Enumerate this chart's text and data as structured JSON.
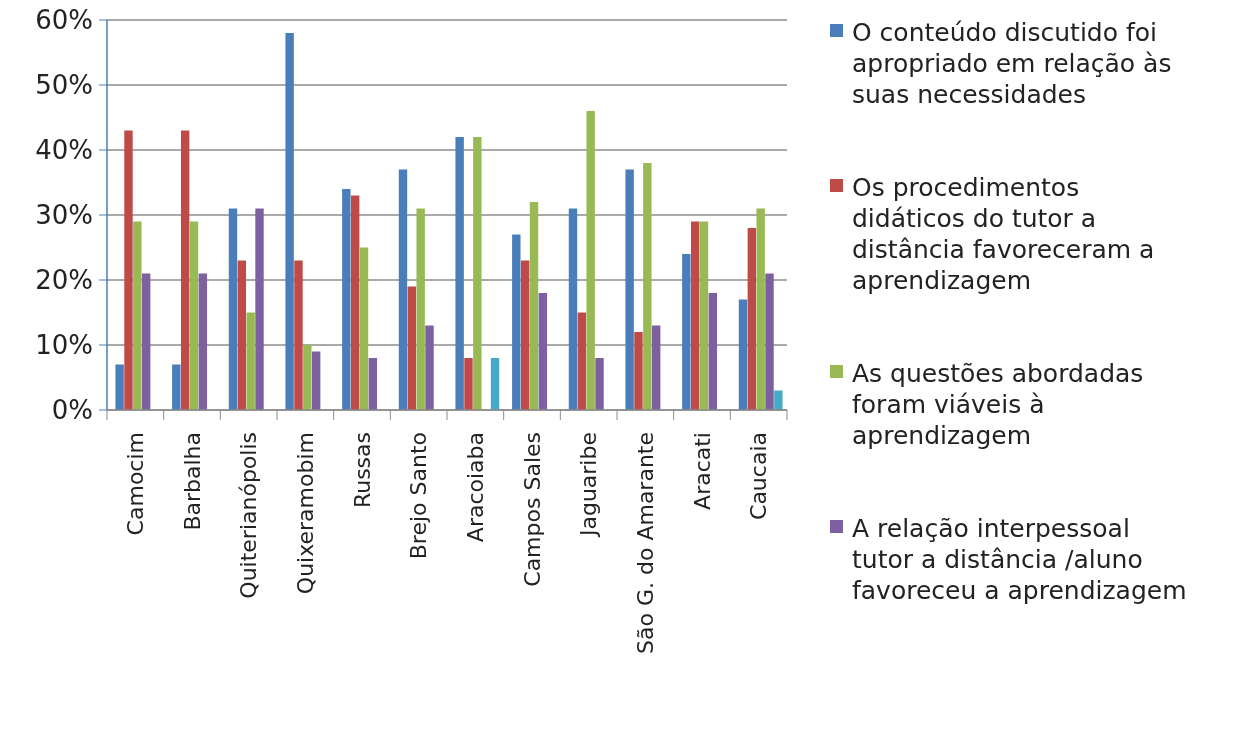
{
  "chart_data": {
    "type": "bar",
    "categories": [
      "Camocim",
      "Barbalha",
      "Quiterianópolis",
      "Quixeramobim",
      "Russas",
      "Brejo Santo",
      "Aracoiaba",
      "Campos Sales",
      "Jaguaribe",
      "São G. do Amarante",
      "Aracati",
      "Caucaia"
    ],
    "series": [
      {
        "name": "O conteúdo discutido foi apropriado em relação às suas necessidades",
        "color": "#4a7ebb",
        "values": [
          7,
          7,
          31,
          58,
          34,
          37,
          42,
          27,
          31,
          37,
          24,
          17
        ]
      },
      {
        "name": "Os procedimentos didáticos do tutor a distância favoreceram a aprendizagem",
        "color": "#be4b48",
        "values": [
          43,
          43,
          23,
          23,
          33,
          19,
          8,
          23,
          15,
          12,
          29,
          28
        ]
      },
      {
        "name": "As questões abordadas foram viáveis à aprendizagem",
        "color": "#98b954",
        "values": [
          29,
          29,
          15,
          10,
          25,
          31,
          42,
          32,
          46,
          38,
          29,
          31
        ]
      },
      {
        "name": "A relação interpessoal tutor a distância /aluno favoreceu a aprendizagem",
        "color": "#7d60a0",
        "values": [
          21,
          21,
          31,
          9,
          8,
          13,
          0,
          18,
          8,
          13,
          18,
          21
        ]
      },
      {
        "color": "#46aac5",
        "values": [
          0,
          0,
          0,
          0,
          0,
          0,
          8,
          0,
          0,
          0,
          0,
          3
        ]
      }
    ],
    "ylim": [
      0,
      60
    ],
    "yticks": [
      {
        "value": 0,
        "label": "0%"
      },
      {
        "value": 10,
        "label": "10%"
      },
      {
        "value": 20,
        "label": "20%"
      },
      {
        "value": 30,
        "label": "30%"
      },
      {
        "value": 40,
        "label": "40%"
      },
      {
        "value": 50,
        "label": "50%"
      },
      {
        "value": 60,
        "label": "60%"
      }
    ],
    "grid": "y",
    "legend": "right"
  }
}
